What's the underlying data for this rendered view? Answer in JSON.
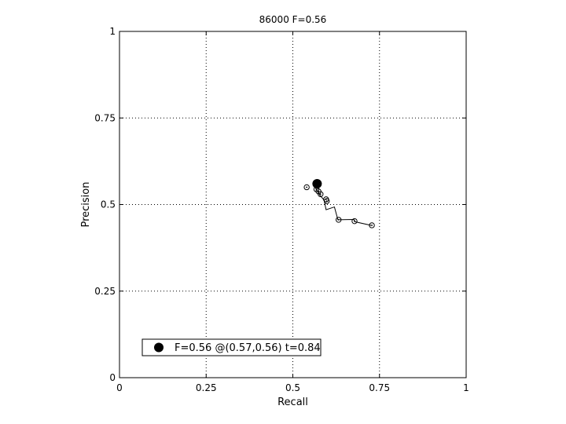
{
  "chart_data": {
    "type": "scatter",
    "title": "86000 F=0.56",
    "xlabel": "Recall",
    "ylabel": "Precision",
    "xlim": [
      0,
      1
    ],
    "ylim": [
      0,
      1
    ],
    "grid": true,
    "xticks": [
      0,
      0.25,
      0.5,
      0.75,
      1
    ],
    "yticks": [
      0,
      0.25,
      0.5,
      0.75,
      1
    ],
    "xtick_labels": [
      "0",
      "0.25",
      "0.5",
      "0.75",
      "1"
    ],
    "ytick_labels": [
      "0",
      "0.25",
      "0.5",
      "0.75",
      "1"
    ],
    "curve": {
      "x": [
        0.565,
        0.572,
        0.578,
        0.59,
        0.596,
        0.62,
        0.63,
        0.676,
        0.68,
        0.726
      ],
      "y": [
        0.548,
        0.538,
        0.527,
        0.513,
        0.485,
        0.493,
        0.456,
        0.457,
        0.45,
        0.44
      ]
    },
    "points": {
      "x": [
        0.54,
        0.568,
        0.574,
        0.58,
        0.596,
        0.598,
        0.632,
        0.678,
        0.728
      ],
      "y": [
        0.55,
        0.544,
        0.538,
        0.53,
        0.515,
        0.51,
        0.456,
        0.452,
        0.44
      ]
    },
    "best_point": {
      "x": 0.57,
      "y": 0.56
    },
    "legend": {
      "label": "F=0.56 @(0.57,0.56) t=0.84",
      "placement": "bottom-left"
    }
  }
}
